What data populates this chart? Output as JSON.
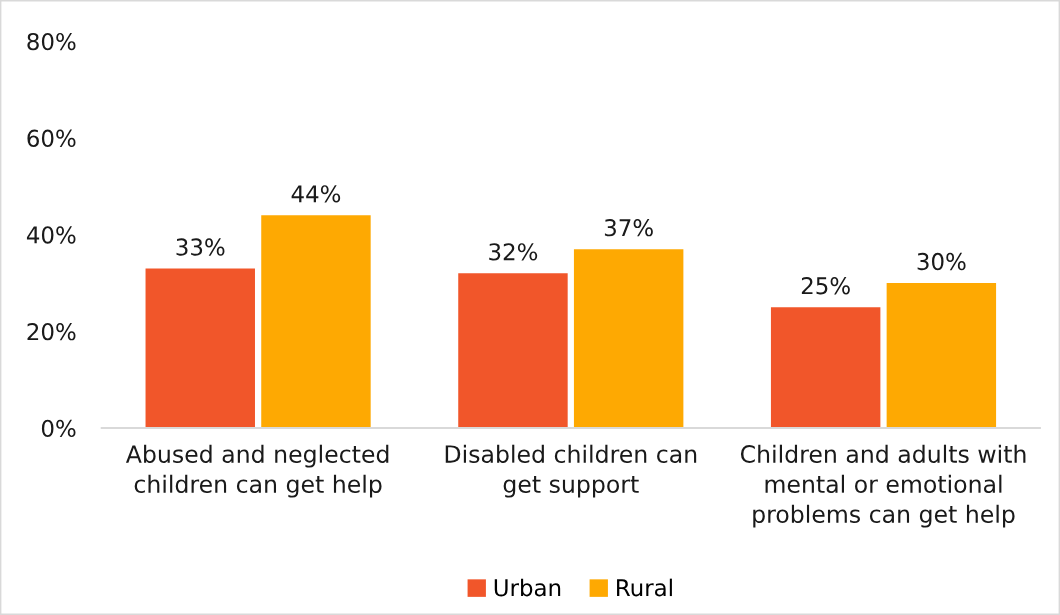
{
  "chart_data": {
    "type": "bar",
    "categories": [
      "Abused and neglected\nchildren can get help",
      "Disabled children can\nget support",
      "Children and adults with\nmental or emotional\nproblems can get help"
    ],
    "series": [
      {
        "name": "Urban",
        "color": "#f1562a",
        "values": [
          33,
          32,
          25
        ],
        "value_labels": [
          "33%",
          "32%",
          "25%"
        ]
      },
      {
        "name": "Rural",
        "color": "#fea902",
        "values": [
          44,
          37,
          30
        ],
        "value_labels": [
          "44%",
          "37%",
          "30%"
        ]
      }
    ],
    "ylim": [
      0,
      80
    ],
    "yticks": [
      {
        "value": 0,
        "label": "0%"
      },
      {
        "value": 20,
        "label": "20%"
      },
      {
        "value": 40,
        "label": "40%"
      },
      {
        "value": 60,
        "label": "60%"
      },
      {
        "value": 80,
        "label": "80%"
      }
    ],
    "grid": false,
    "legend": "bottom"
  }
}
